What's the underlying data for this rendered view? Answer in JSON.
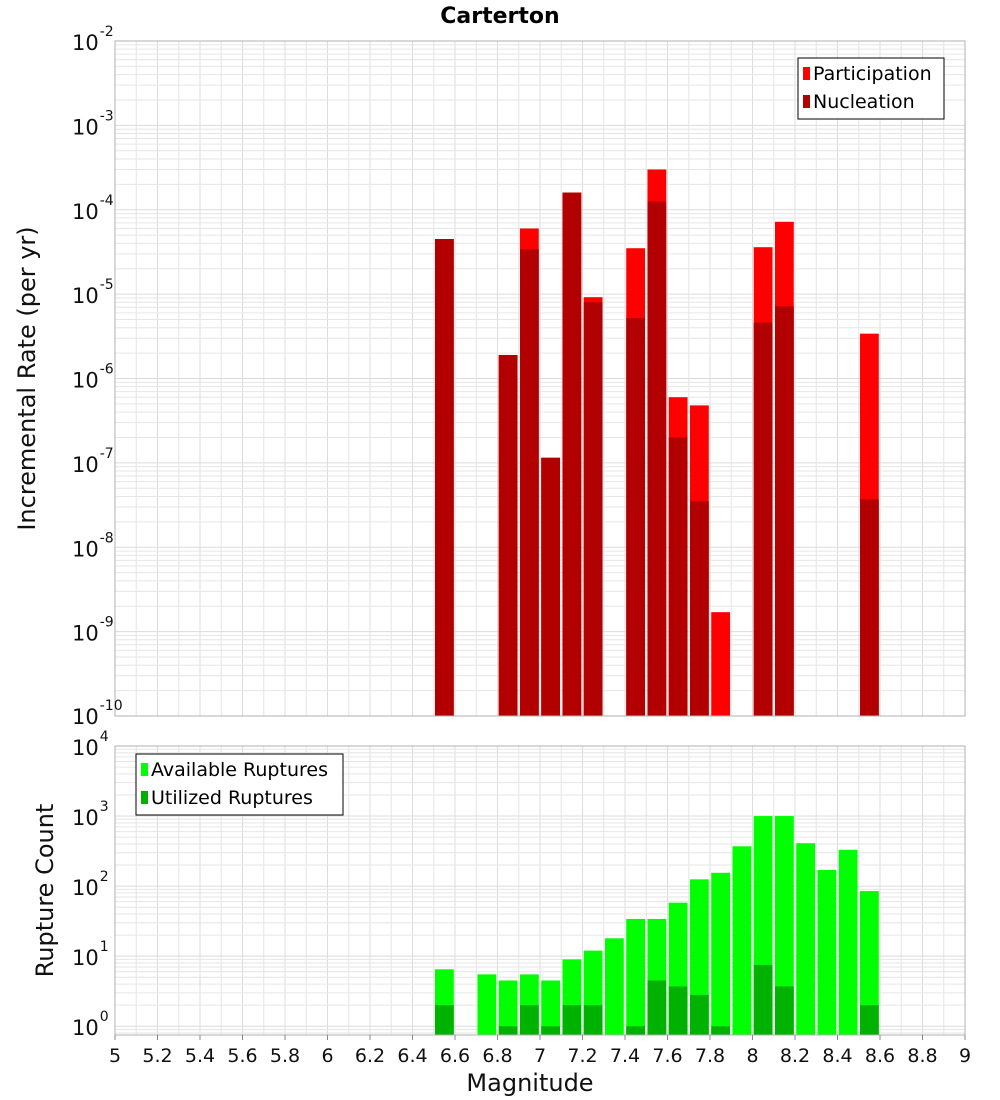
{
  "chart_data": [
    {
      "type": "bar",
      "title": "Carterton",
      "ylabel": "Incremental Rate (per yr)",
      "xlabel": "",
      "yscale": "log",
      "ylim": [
        1e-10,
        0.01
      ],
      "xlim": [
        5,
        9
      ],
      "legend_position": "top-right",
      "yticks": [
        {
          "base": "10",
          "exp": "-2"
        },
        {
          "base": "10",
          "exp": "-3"
        },
        {
          "base": "10",
          "exp": "-4"
        },
        {
          "base": "10",
          "exp": "-5"
        },
        {
          "base": "10",
          "exp": "-6"
        },
        {
          "base": "10",
          "exp": "-7"
        },
        {
          "base": "10",
          "exp": "-8"
        },
        {
          "base": "10",
          "exp": "-9"
        },
        {
          "base": "10",
          "exp": "-10"
        }
      ],
      "series": [
        {
          "name": "Participation",
          "color": "#ff0000",
          "points": [
            {
              "x": 6.55,
              "y": 4.5e-05
            },
            {
              "x": 6.85,
              "y": 1.9e-06
            },
            {
              "x": 6.95,
              "y": 6e-05
            },
            {
              "x": 7.05,
              "y": 1.15e-07
            },
            {
              "x": 7.15,
              "y": 0.00016
            },
            {
              "x": 7.25,
              "y": 9.2e-06
            },
            {
              "x": 7.45,
              "y": 3.5e-05
            },
            {
              "x": 7.55,
              "y": 0.0003
            },
            {
              "x": 7.65,
              "y": 6e-07
            },
            {
              "x": 7.75,
              "y": 4.8e-07
            },
            {
              "x": 7.85,
              "y": 1.7e-09
            },
            {
              "x": 8.05,
              "y": 3.6e-05
            },
            {
              "x": 8.15,
              "y": 7.2e-05
            },
            {
              "x": 8.55,
              "y": 3.4e-06
            }
          ]
        },
        {
          "name": "Nucleation",
          "color": "#b20000",
          "points": [
            {
              "x": 6.55,
              "y": 4.5e-05
            },
            {
              "x": 6.85,
              "y": 1.9e-06
            },
            {
              "x": 6.95,
              "y": 3.4e-05
            },
            {
              "x": 7.05,
              "y": 1.15e-07
            },
            {
              "x": 7.15,
              "y": 0.00016
            },
            {
              "x": 7.25,
              "y": 8e-06
            },
            {
              "x": 7.45,
              "y": 5.2e-06
            },
            {
              "x": 7.55,
              "y": 0.000125
            },
            {
              "x": 7.65,
              "y": 2e-07
            },
            {
              "x": 7.75,
              "y": 3.5e-08
            },
            {
              "x": 8.05,
              "y": 4.6e-06
            },
            {
              "x": 8.15,
              "y": 7.2e-06
            },
            {
              "x": 8.55,
              "y": 3.7e-08
            }
          ]
        }
      ]
    },
    {
      "type": "bar",
      "title": "",
      "ylabel": "Rupture Count",
      "xlabel": "Magnitude",
      "yscale": "log",
      "ylim": [
        0.75,
        10000
      ],
      "xlim": [
        5,
        9
      ],
      "legend_position": "top-left",
      "yticks": [
        {
          "value": 10000,
          "base": "10",
          "exp": "4"
        },
        {
          "value": 1000,
          "base": "10",
          "exp": "3"
        },
        {
          "value": 100,
          "base": "10",
          "exp": "2"
        },
        {
          "value": 10,
          "base": "10",
          "exp": "1"
        },
        {
          "value": 1,
          "base": "10",
          "exp": "0"
        }
      ],
      "xticks": [
        "5",
        "5.2",
        "5.4",
        "5.6",
        "5.8",
        "6",
        "6.2",
        "6.4",
        "6.6",
        "6.8",
        "7",
        "7.2",
        "7.4",
        "7.6",
        "7.8",
        "8",
        "8.2",
        "8.4",
        "8.6",
        "8.8",
        "9"
      ],
      "series": [
        {
          "name": "Available Ruptures",
          "color": "#00ff00",
          "points": [
            {
              "x": 6.55,
              "y": 6.5
            },
            {
              "x": 6.75,
              "y": 5.5
            },
            {
              "x": 6.85,
              "y": 4.5
            },
            {
              "x": 6.95,
              "y": 5.5
            },
            {
              "x": 7.05,
              "y": 4.5
            },
            {
              "x": 7.15,
              "y": 9
            },
            {
              "x": 7.25,
              "y": 12
            },
            {
              "x": 7.35,
              "y": 18
            },
            {
              "x": 7.45,
              "y": 34
            },
            {
              "x": 7.55,
              "y": 34
            },
            {
              "x": 7.65,
              "y": 58
            },
            {
              "x": 7.75,
              "y": 125
            },
            {
              "x": 7.85,
              "y": 155
            },
            {
              "x": 7.95,
              "y": 370
            },
            {
              "x": 8.05,
              "y": 1000
            },
            {
              "x": 8.15,
              "y": 1000
            },
            {
              "x": 8.25,
              "y": 410
            },
            {
              "x": 8.35,
              "y": 170
            },
            {
              "x": 8.45,
              "y": 330
            },
            {
              "x": 8.55,
              "y": 85
            }
          ]
        },
        {
          "name": "Utilized Ruptures",
          "color": "#00b200",
          "points": [
            {
              "x": 6.55,
              "y": 2
            },
            {
              "x": 6.85,
              "y": 1
            },
            {
              "x": 6.95,
              "y": 2
            },
            {
              "x": 7.05,
              "y": 1
            },
            {
              "x": 7.15,
              "y": 2
            },
            {
              "x": 7.25,
              "y": 2
            },
            {
              "x": 7.45,
              "y": 1
            },
            {
              "x": 7.55,
              "y": 4.5
            },
            {
              "x": 7.65,
              "y": 3.7
            },
            {
              "x": 7.75,
              "y": 2.8
            },
            {
              "x": 7.85,
              "y": 1
            },
            {
              "x": 8.05,
              "y": 7.5
            },
            {
              "x": 8.15,
              "y": 3.7
            },
            {
              "x": 8.55,
              "y": 2
            }
          ]
        }
      ]
    }
  ]
}
